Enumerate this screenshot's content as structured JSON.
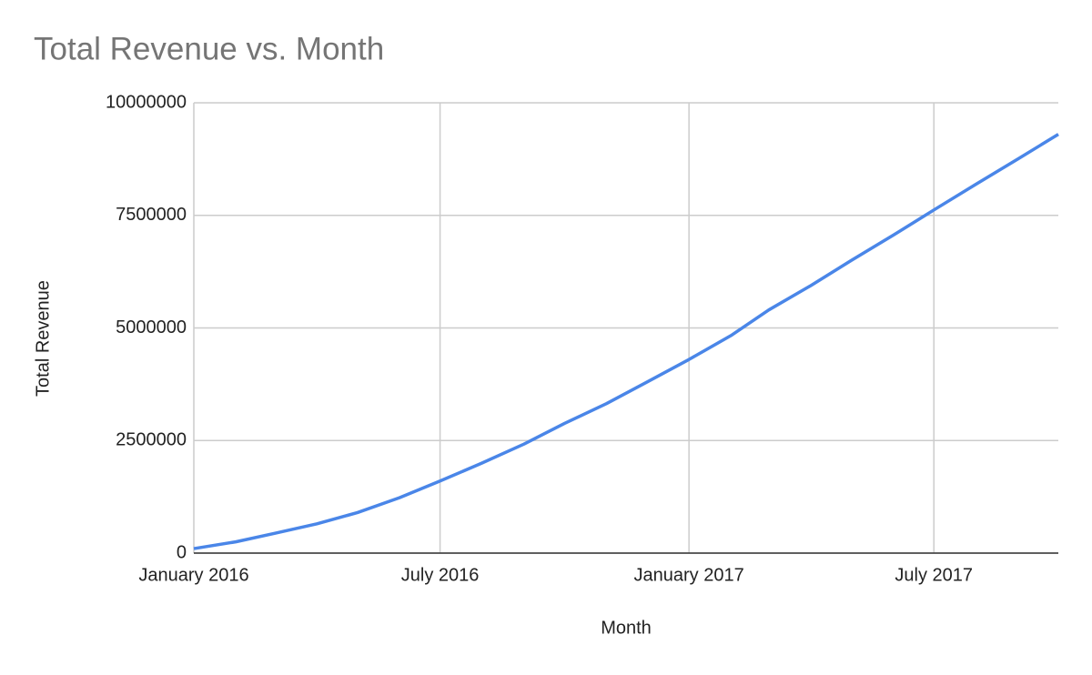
{
  "chart_data": {
    "type": "line",
    "title": "Total Revenue vs. Month",
    "x_label": "Month",
    "y_label": "Total Revenue",
    "x": [
      "2016-01",
      "2016-02",
      "2016-03",
      "2016-04",
      "2016-05",
      "2016-06",
      "2016-07",
      "2016-08",
      "2016-09",
      "2016-10",
      "2016-11",
      "2016-12",
      "2017-01",
      "2017-02",
      "2017-03",
      "2017-04",
      "2017-05",
      "2017-06",
      "2017-07",
      "2017-08",
      "2017-09",
      "2017-10"
    ],
    "series": [
      {
        "name": "Total Revenue",
        "color": "#4a86e8",
        "values": [
          100000,
          250000,
          440000,
          650000,
          900000,
          1230000,
          1600000,
          2000000,
          2420000,
          2880000,
          3320000,
          3800000,
          4300000,
          4830000,
          5400000,
          5940000,
          6500000,
          7060000,
          7620000,
          8190000,
          8750000,
          9300000
        ]
      }
    ],
    "xlim": [
      "2016-01",
      "2017-10"
    ],
    "xticks": [
      {
        "value": "2016-01",
        "label": "January 2016"
      },
      {
        "value": "2016-07",
        "label": "July 2016"
      },
      {
        "value": "2017-01",
        "label": "January 2017"
      },
      {
        "value": "2017-07",
        "label": "July 2017"
      }
    ],
    "ylim": [
      0,
      10000000
    ],
    "yticks": [
      0,
      2500000,
      5000000,
      7500000,
      10000000
    ],
    "grid": true
  }
}
